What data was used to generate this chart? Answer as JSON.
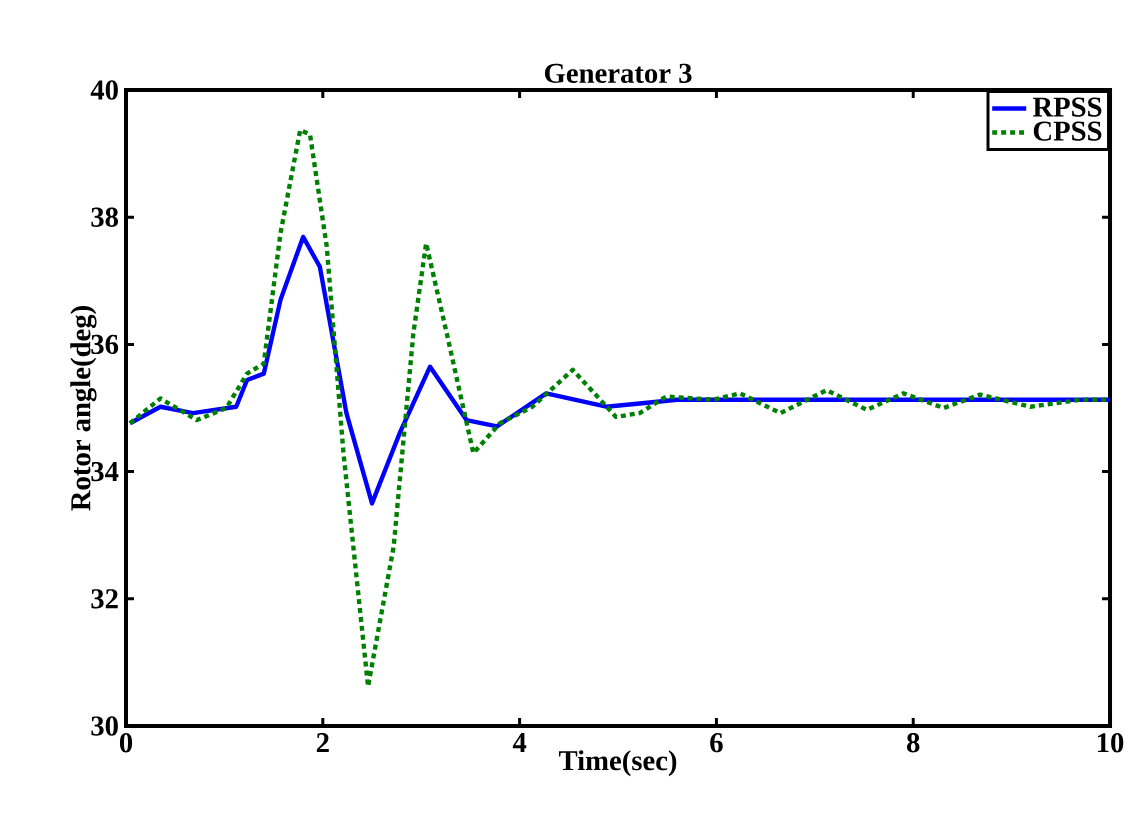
{
  "chart_data": {
    "type": "line",
    "title": "Generator 3",
    "xlabel": "Time(sec)",
    "ylabel": "Rotor angle(deg)",
    "xlim": [
      0,
      10
    ],
    "ylim": [
      30,
      40
    ],
    "xticks": [
      0,
      2,
      4,
      6,
      8,
      10
    ],
    "yticks": [
      30,
      32,
      34,
      36,
      38,
      40
    ],
    "grid": false,
    "legend": "top right",
    "marker": "none",
    "series": [
      {
        "name": "RPSS",
        "color": "#0000ff",
        "line_style": "solid",
        "x": [
          0.04,
          0.35,
          0.68,
          1.12,
          1.23,
          1.4,
          1.57,
          1.8,
          1.97,
          2.24,
          2.5,
          2.78,
          3.09,
          3.46,
          3.77,
          4.27,
          4.88,
          5.22,
          5.6,
          6,
          7,
          8,
          9,
          10
        ],
        "values": [
          34.76,
          35.02,
          34.92,
          35.02,
          35.44,
          35.54,
          36.7,
          37.69,
          37.22,
          34.92,
          33.5,
          34.6,
          35.65,
          34.81,
          34.71,
          35.23,
          35.02,
          35.07,
          35.13,
          35.13,
          35.13,
          35.13,
          35.13,
          35.13
        ]
      },
      {
        "name": "CPSS",
        "color": "#008000",
        "line_style": "dotted",
        "x": [
          0.04,
          0.35,
          0.72,
          1.02,
          1.23,
          1.4,
          1.57,
          1.77,
          1.87,
          2.04,
          2.21,
          2.46,
          2.72,
          2.92,
          3.05,
          3.26,
          3.53,
          3.8,
          4.13,
          4.54,
          4.98,
          5.22,
          5.49,
          5.97,
          6.24,
          6.65,
          7.12,
          7.53,
          7.9,
          8.31,
          8.68,
          9.19,
          9.7,
          10
        ],
        "values": [
          34.76,
          35.15,
          34.81,
          35.0,
          35.54,
          35.7,
          37.75,
          39.37,
          39.3,
          37.54,
          34.29,
          30.62,
          32.82,
          36.17,
          37.59,
          36.17,
          34.29,
          34.76,
          35.02,
          35.6,
          34.86,
          34.92,
          35.18,
          35.13,
          35.23,
          34.92,
          35.28,
          34.97,
          35.23,
          35.0,
          35.21,
          35.02,
          35.13,
          35.13
        ]
      }
    ]
  }
}
